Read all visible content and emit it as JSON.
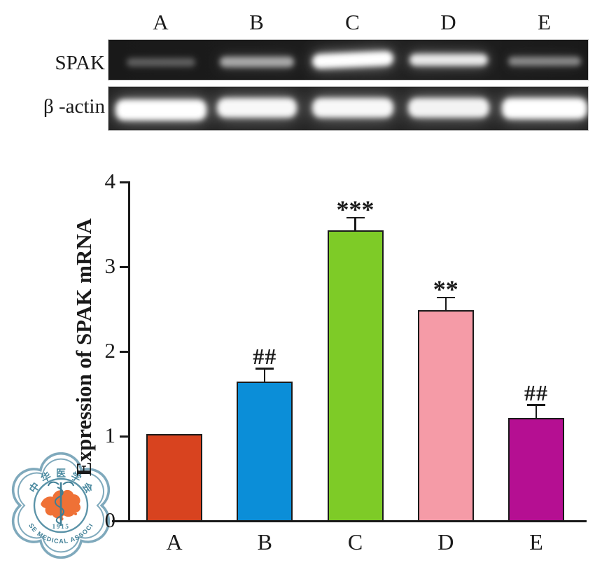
{
  "gel": {
    "lane_labels": [
      "A",
      "B",
      "C",
      "D",
      "E"
    ],
    "rows": [
      {
        "label": "SPAK",
        "band_intensities": [
          0.3,
          0.62,
          1.0,
          0.9,
          0.48
        ]
      },
      {
        "label": "β -actin",
        "band_intensities": [
          1.0,
          0.97,
          0.97,
          0.95,
          1.0
        ]
      }
    ]
  },
  "chart_data": {
    "type": "bar",
    "title": "",
    "categories": [
      "A",
      "B",
      "C",
      "D",
      "E"
    ],
    "values": [
      1.02,
      1.64,
      3.42,
      2.48,
      1.21
    ],
    "errors": [
      0,
      0.16,
      0.16,
      0.16,
      0.16
    ],
    "significance": [
      "",
      "##",
      "***",
      "**",
      "##"
    ],
    "bar_colors": [
      "#d8431f",
      "#0b8ed8",
      "#7ecb27",
      "#f59ba7",
      "#b50f92"
    ],
    "ylabel": "Expression of SPAK mRNA",
    "xlabel": "",
    "ylim": [
      0,
      4
    ],
    "yticks": [
      0,
      1,
      2,
      3,
      4
    ],
    "grid": false,
    "legend": "none"
  },
  "logo": {
    "name": "Chinese Medical Association emblem",
    "chinese_chars": [
      "中",
      "华",
      "医",
      "学",
      "会"
    ],
    "arc_text": "CHINESE MEDICAL ASSOCIATION",
    "year": "1915",
    "map_color": "#ef7136",
    "ring_color": "#7fa9bc",
    "text_color": "#3e7e95"
  }
}
